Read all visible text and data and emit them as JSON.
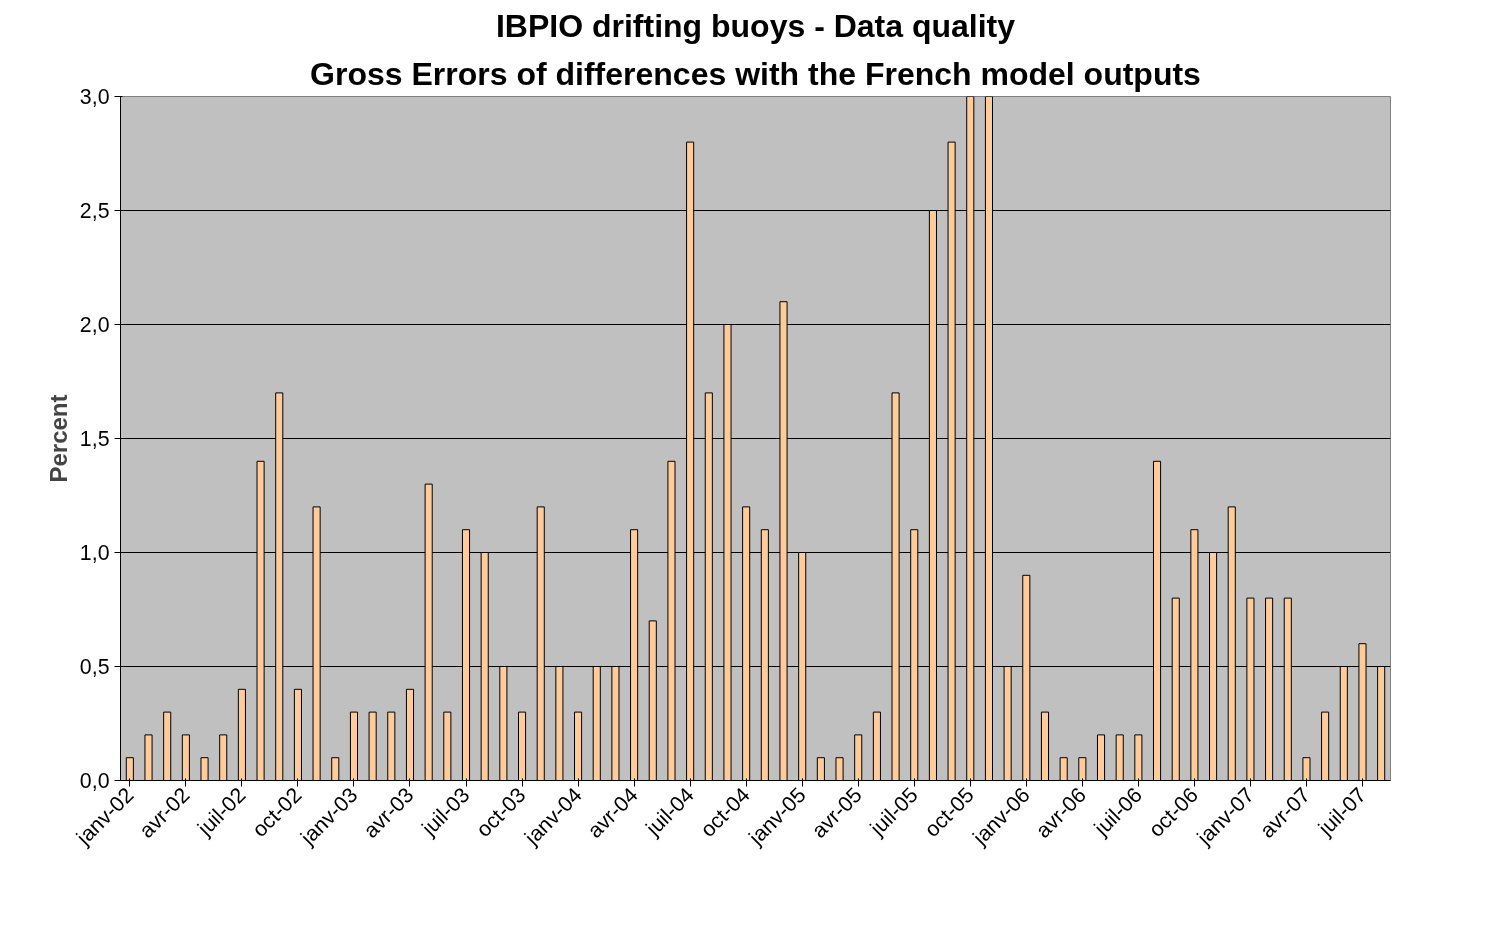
{
  "chart_data": {
    "type": "bar",
    "title": "IBPIO drifting buoys - Data quality",
    "subtitle": "Gross Errors of differences with the French model outputs",
    "ylabel": "Percent",
    "categories": [
      "janv-02",
      null,
      null,
      "avr-02",
      null,
      null,
      "juil-02",
      null,
      null,
      "oct-02",
      null,
      null,
      "janv-03",
      null,
      null,
      "avr-03",
      null,
      null,
      "juil-03",
      null,
      null,
      "oct-03",
      null,
      null,
      "janv-04",
      null,
      null,
      "avr-04",
      null,
      null,
      "juil-04",
      null,
      null,
      "oct-04",
      null,
      null,
      "janv-05",
      null,
      null,
      "avr-05",
      null,
      null,
      "juil-05",
      null,
      null,
      "oct-05",
      null,
      null,
      "janv-06",
      null,
      null,
      "avr-06",
      null,
      null,
      "juil-06",
      null,
      null,
      "oct-06",
      null,
      null,
      "janv-07",
      null,
      null,
      "avr-07",
      null,
      null,
      "juil-07",
      null
    ],
    "values": [
      0.1,
      0.2,
      0.3,
      0.2,
      0.1,
      0.2,
      0.4,
      1.4,
      1.7,
      0.4,
      1.2,
      0.1,
      0.3,
      0.3,
      0.3,
      0.4,
      1.3,
      0.3,
      1.1,
      1.0,
      0.5,
      0.3,
      1.2,
      0.5,
      0.3,
      0.5,
      0.5,
      1.1,
      0.7,
      1.4,
      2.8,
      1.7,
      2.0,
      1.2,
      1.1,
      2.1,
      1.0,
      0.1,
      0.1,
      0.2,
      0.3,
      1.7,
      1.1,
      2.5,
      2.8,
      3.0,
      3.0,
      0.5,
      0.9,
      0.3,
      0.1,
      0.1,
      0.2,
      0.2,
      0.2,
      1.4,
      0.8,
      1.1,
      1.0,
      1.2,
      0.8,
      0.8,
      0.8,
      0.1,
      0.3,
      0.5,
      0.6,
      0.5
    ],
    "color": "#ffcc99",
    "ylim": [
      0,
      3.0
    ],
    "yticks": [
      {
        "value": 0,
        "label": "0,0"
      },
      {
        "value": 0.5,
        "label": "0,5"
      },
      {
        "value": 1.0,
        "label": "1,0"
      },
      {
        "value": 1.5,
        "label": "1,5"
      },
      {
        "value": 2.0,
        "label": "2,0"
      },
      {
        "value": 2.5,
        "label": "2,5"
      },
      {
        "value": 3.0,
        "label": "3,0"
      }
    ],
    "grid": "y"
  }
}
